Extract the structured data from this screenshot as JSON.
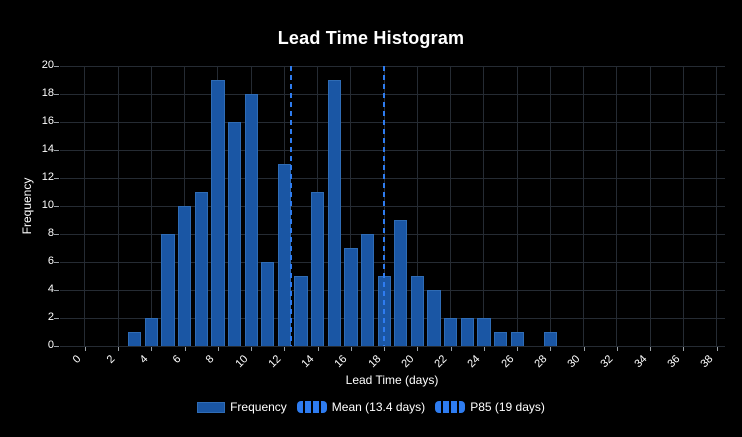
{
  "chart_data": {
    "type": "bar",
    "title": "Lead Time Histogram",
    "xlabel": "Lead Time (days)",
    "ylabel": "Frequency",
    "categories": [
      4,
      5,
      6,
      7,
      8,
      9,
      10,
      11,
      12,
      13,
      14,
      15,
      16,
      17,
      18,
      19,
      20,
      21,
      22,
      23,
      24,
      25,
      26,
      27,
      28,
      29
    ],
    "values": [
      1,
      2,
      8,
      10,
      11,
      19,
      16,
      18,
      6,
      13,
      5,
      11,
      19,
      7,
      8,
      5,
      9,
      5,
      4,
      2,
      2,
      2,
      1,
      1,
      0,
      1
    ],
    "x_domain": [
      0,
      39
    ],
    "x_ticks": [
      0,
      2,
      4,
      6,
      8,
      10,
      12,
      14,
      16,
      18,
      20,
      22,
      24,
      26,
      28,
      30,
      32,
      34,
      36,
      38
    ],
    "ylim": [
      0,
      20
    ],
    "y_ticks": [
      0,
      2,
      4,
      6,
      8,
      10,
      12,
      14,
      16,
      18,
      20
    ],
    "grid": true,
    "legend_position": "bottom",
    "legend": [
      "Frequency",
      "Mean (13.4 days)",
      "P85 (19 days)"
    ],
    "annotations": [
      {
        "name": "mean",
        "label": "Mean (13.4 days)",
        "value": 13.4,
        "style": "dashed"
      },
      {
        "name": "p85",
        "label": "P85 (19 days)",
        "value": 19,
        "style": "dashed"
      }
    ]
  },
  "colors": {
    "background": "#000000",
    "text": "#ffffff",
    "grid": "#252b33",
    "tick": "#9aa0a6",
    "bar": "#1a56a4",
    "bar-border": "#2f6cb5",
    "line": "#2e7cf0"
  }
}
